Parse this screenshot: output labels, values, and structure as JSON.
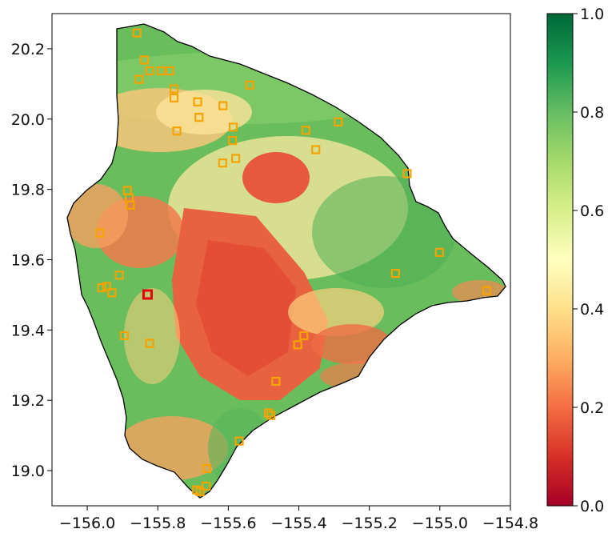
{
  "map": {
    "lon_range": [
      -156.1,
      -154.8
    ],
    "lat_range": [
      18.9,
      20.3
    ],
    "x_ticks": [
      "−156.0",
      "−155.8",
      "−155.6",
      "−155.4",
      "−155.2",
      "−155.0",
      "−154.8"
    ],
    "y_ticks": [
      "20.2",
      "20.0",
      "19.8",
      "19.6",
      "19.4",
      "19.2",
      "19.0"
    ],
    "x_tick_values": [
      -156.0,
      -155.8,
      -155.6,
      -155.4,
      -155.2,
      -155.0,
      -154.8
    ],
    "y_tick_values": [
      20.2,
      20.0,
      19.8,
      19.6,
      19.4,
      19.2,
      19.0
    ],
    "marker_color": "#f5a300",
    "highlight_color": "#e8000b",
    "stations": [
      [
        -155.859,
        20.245
      ],
      [
        -155.838,
        20.168
      ],
      [
        -155.853,
        20.113
      ],
      [
        -155.823,
        20.137
      ],
      [
        -155.79,
        20.137
      ],
      [
        -155.766,
        20.137
      ],
      [
        -155.754,
        20.086
      ],
      [
        -155.754,
        20.06
      ],
      [
        -155.687,
        20.049
      ],
      [
        -155.683,
        20.005
      ],
      [
        -155.746,
        19.966
      ],
      [
        -155.615,
        20.038
      ],
      [
        -155.539,
        20.097
      ],
      [
        -155.586,
        19.977
      ],
      [
        -155.588,
        19.939
      ],
      [
        -155.579,
        19.888
      ],
      [
        -155.616,
        19.875
      ],
      [
        -155.38,
        19.968
      ],
      [
        -155.352,
        19.913
      ],
      [
        -155.288,
        19.992
      ],
      [
        -155.093,
        19.845
      ],
      [
        -155.886,
        19.797
      ],
      [
        -155.881,
        19.776
      ],
      [
        -155.878,
        19.755
      ],
      [
        -155.964,
        19.676
      ],
      [
        -155.001,
        19.621
      ],
      [
        -155.126,
        19.561
      ],
      [
        -155.909,
        19.556
      ],
      [
        -155.959,
        19.52
      ],
      [
        -155.945,
        19.524
      ],
      [
        -155.93,
        19.506
      ],
      [
        -154.867,
        19.512
      ],
      [
        -155.895,
        19.384
      ],
      [
        -155.823,
        19.362
      ],
      [
        -155.386,
        19.384
      ],
      [
        -155.403,
        19.358
      ],
      [
        -155.465,
        19.254
      ],
      [
        -155.486,
        19.164
      ],
      [
        -155.479,
        19.157
      ],
      [
        -155.569,
        19.084
      ],
      [
        -155.661,
        19.006
      ],
      [
        -155.663,
        18.956
      ],
      [
        -155.69,
        18.945
      ],
      [
        -155.68,
        18.94
      ]
    ],
    "highlight_station": [
      -155.829,
      19.501
    ]
  },
  "colorbar": {
    "ticks": [
      "0.0",
      "0.2",
      "0.4",
      "0.6",
      "0.8",
      "1.0"
    ],
    "tick_values": [
      0.0,
      0.2,
      0.4,
      0.6,
      0.8,
      1.0
    ],
    "colormap": [
      "#a50026",
      "#d73027",
      "#f46d43",
      "#fdae61",
      "#fee08b",
      "#ffffbf",
      "#d9ef8b",
      "#a6d96a",
      "#66bd63",
      "#1a9850",
      "#006837"
    ]
  }
}
